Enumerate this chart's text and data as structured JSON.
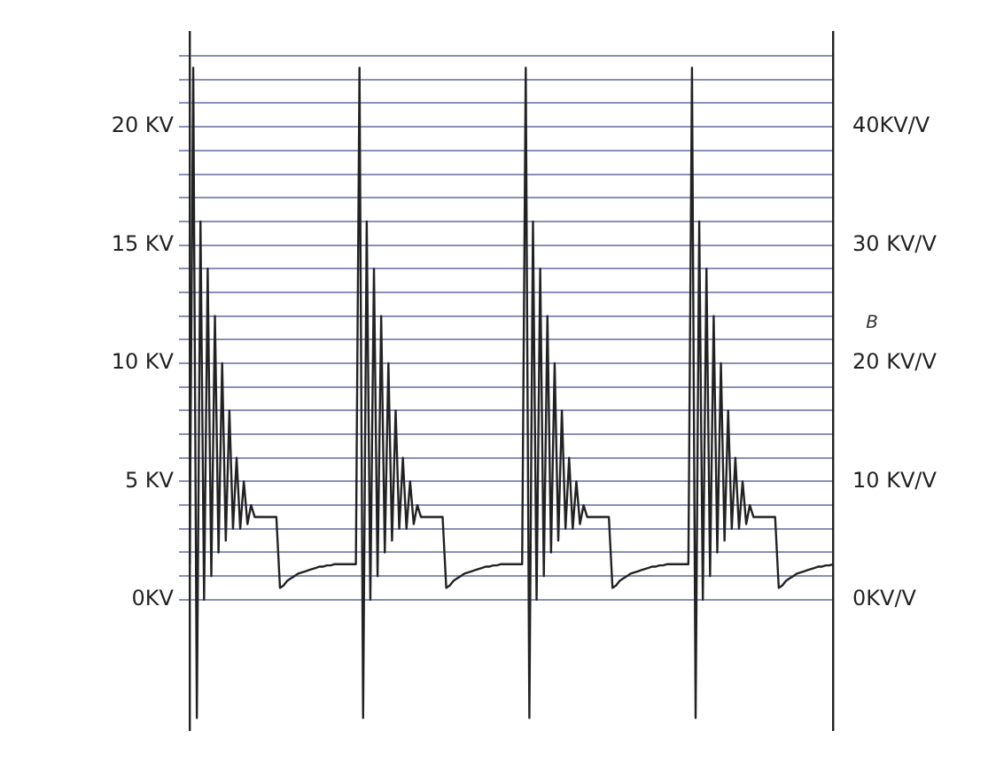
{
  "chart_data": {
    "type": "line",
    "annotations": [
      "B"
    ],
    "categories": [
      null,
      null,
      null,
      null,
      null,
      null,
      null,
      null,
      null,
      null,
      null,
      null,
      null,
      null,
      null,
      null,
      null,
      null,
      null,
      null,
      null,
      null,
      null,
      null,
      null,
      null,
      null,
      null,
      null,
      null,
      null,
      null,
      null,
      null,
      null,
      null,
      null,
      null,
      null,
      null,
      null,
      null,
      null,
      null,
      null,
      null,
      null,
      null,
      null,
      null,
      null,
      null,
      null,
      null,
      null,
      null,
      null,
      null,
      null,
      null,
      null,
      null,
      null,
      null,
      null,
      null,
      null,
      null,
      null,
      null,
      null,
      null,
      null,
      null,
      null,
      null,
      null,
      null,
      null,
      null,
      null,
      null,
      null,
      null,
      null,
      null,
      null,
      null,
      null,
      null,
      null,
      null,
      null,
      null,
      null,
      null,
      null,
      null,
      null,
      null,
      null,
      null,
      null,
      null,
      null,
      null,
      null,
      null,
      null,
      null,
      null,
      null,
      null,
      null,
      null,
      null,
      null,
      null,
      null,
      null,
      null,
      null,
      null,
      null,
      null,
      null,
      null,
      null,
      null,
      null,
      null,
      null,
      null,
      null,
      null,
      null,
      null,
      null,
      null,
      null,
      null,
      null,
      null,
      null,
      null,
      null,
      null,
      null,
      null,
      null,
      null,
      null,
      null,
      null,
      null,
      null,
      null,
      null,
      null,
      null,
      null,
      null,
      null,
      null,
      null,
      null,
      null,
      null,
      null,
      null,
      null,
      null,
      null,
      null,
      null,
      null,
      null,
      null,
      null
    ],
    "series": [
      {
        "color": "#222222",
        "values": [
          1.5,
          22.5,
          -5,
          16,
          0,
          14,
          1,
          12,
          2,
          10,
          2.5,
          8,
          3,
          6,
          3,
          5,
          3.2,
          4,
          3.5,
          3.5,
          3.5,
          3.5,
          3.5,
          3.5,
          3.5,
          0.5,
          0.6,
          0.8,
          0.9,
          1,
          1.1,
          1.15,
          1.2,
          1.25,
          1.3,
          1.35,
          1.4,
          1.4,
          1.45,
          1.45,
          1.5,
          1.5,
          1.5,
          1.5,
          1.5,
          1.5,
          1.5,
          22.5,
          -5,
          16,
          0,
          14,
          1,
          12,
          2,
          10,
          2.5,
          8,
          3,
          6,
          3,
          5,
          3.2,
          4,
          3.5,
          3.5,
          3.5,
          3.5,
          3.5,
          3.5,
          3.5,
          0.5,
          0.6,
          0.8,
          0.9,
          1,
          1.1,
          1.15,
          1.2,
          1.25,
          1.3,
          1.35,
          1.4,
          1.4,
          1.45,
          1.45,
          1.5,
          1.5,
          1.5,
          1.5,
          1.5,
          1.5,
          1.5,
          22.5,
          -5,
          16,
          0,
          14,
          1,
          12,
          2,
          10,
          2.5,
          8,
          3,
          6,
          3,
          5,
          3.2,
          4,
          3.5,
          3.5,
          3.5,
          3.5,
          3.5,
          3.5,
          3.5,
          0.5,
          0.6,
          0.8,
          0.9,
          1,
          1.1,
          1.15,
          1.2,
          1.25,
          1.3,
          1.35,
          1.4,
          1.4,
          1.45,
          1.45,
          1.5,
          1.5,
          1.5,
          1.5,
          1.5,
          1.5,
          1.5,
          22.5,
          -5,
          16,
          0,
          14,
          1,
          12,
          2,
          10,
          2.5,
          8,
          3,
          6,
          3,
          5,
          3.2,
          4,
          3.5,
          3.5,
          3.5,
          3.5,
          3.5,
          3.5,
          3.5,
          0.5,
          0.6,
          0.8,
          0.9,
          1,
          1.1,
          1.15,
          1.2,
          1.25,
          1.3,
          1.35,
          1.4,
          1.4,
          1.45,
          1.45,
          1.5
        ]
      }
    ],
    "ylim": [
      -5.5,
      24
    ],
    "yticks": [
      {
        "value": 0,
        "label": "0KV"
      },
      {
        "value": 1,
        "label": null
      },
      {
        "value": 2,
        "label": null
      },
      {
        "value": 3,
        "label": null
      },
      {
        "value": 4,
        "label": null
      },
      {
        "value": 5,
        "label": "5 KV"
      },
      {
        "value": 6,
        "label": null
      },
      {
        "value": 7,
        "label": null
      },
      {
        "value": 8,
        "label": null
      },
      {
        "value": 9,
        "label": null
      },
      {
        "value": 10,
        "label": "10 KV"
      },
      {
        "value": 11,
        "label": null
      },
      {
        "value": 12,
        "label": null
      },
      {
        "value": 13,
        "label": null
      },
      {
        "value": 14,
        "label": null
      },
      {
        "value": 15,
        "label": "15 KV"
      },
      {
        "value": 16,
        "label": null
      },
      {
        "value": 17,
        "label": null
      },
      {
        "value": 18,
        "label": null
      },
      {
        "value": 19,
        "label": null
      },
      {
        "value": 20,
        "label": "20 KV"
      },
      {
        "value": 21,
        "label": null
      },
      {
        "value": 22,
        "label": null
      },
      {
        "value": 23,
        "label": null
      }
    ],
    "y2lim": [
      -11,
      48
    ],
    "y2ticks": [
      {
        "value": 0,
        "label": "0KV/V"
      },
      {
        "value": 10,
        "label": "10 KV/V"
      },
      {
        "value": 20,
        "label": "20 KV/V"
      },
      {
        "value": 30,
        "label": "30 KV/V"
      },
      {
        "value": 40,
        "label": "40KV/V"
      }
    ],
    "grid": "y",
    "legend": false,
    "marker": "none",
    "line_style": "solid",
    "tick_labels": "y"
  }
}
